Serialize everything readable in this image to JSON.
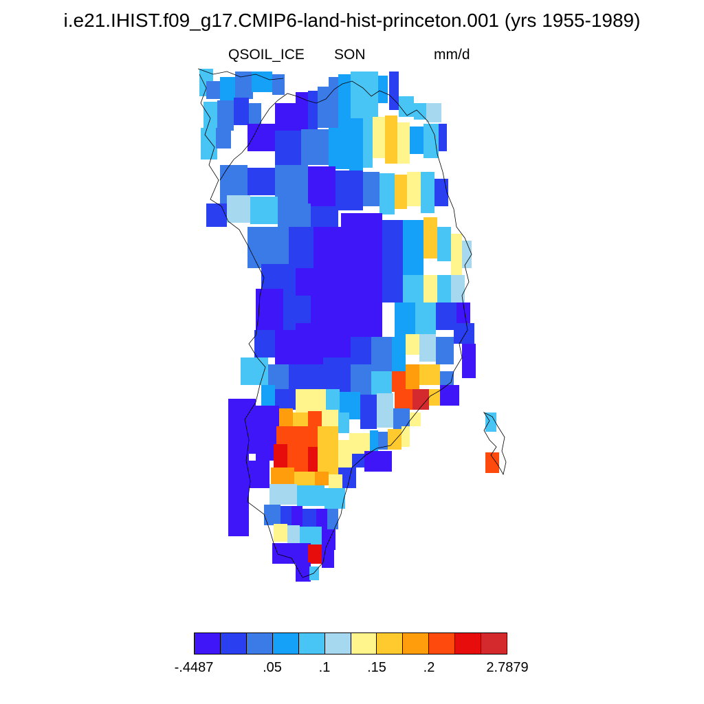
{
  "title": "i.e21.IHIST.f09_g17.CMIP6-land-hist-princeton.001 (yrs 1955-1989)",
  "variable": "QSOIL_ICE",
  "season": "SON",
  "units": "mm/d",
  "colorbar": {
    "colors": [
      "#3f16f8",
      "#2a3ff0",
      "#3a7be8",
      "#16a1f8",
      "#48c5f5",
      "#a6d8ef",
      "#fff58c",
      "#ffca2d",
      "#ff9d0d",
      "#ff4a0d",
      "#e70d0d",
      "#d42a2e"
    ],
    "labels": [
      "-.4487",
      ".05",
      ".1",
      ".15",
      ".2",
      "2.7879"
    ]
  },
  "map": {
    "region": "Greenland",
    "projection": "polar stereographic",
    "palette_note": "cells colored by QSOIL_ICE bin index 0-11 of colorbar.colors",
    "coastline_color": "#000000"
  }
}
